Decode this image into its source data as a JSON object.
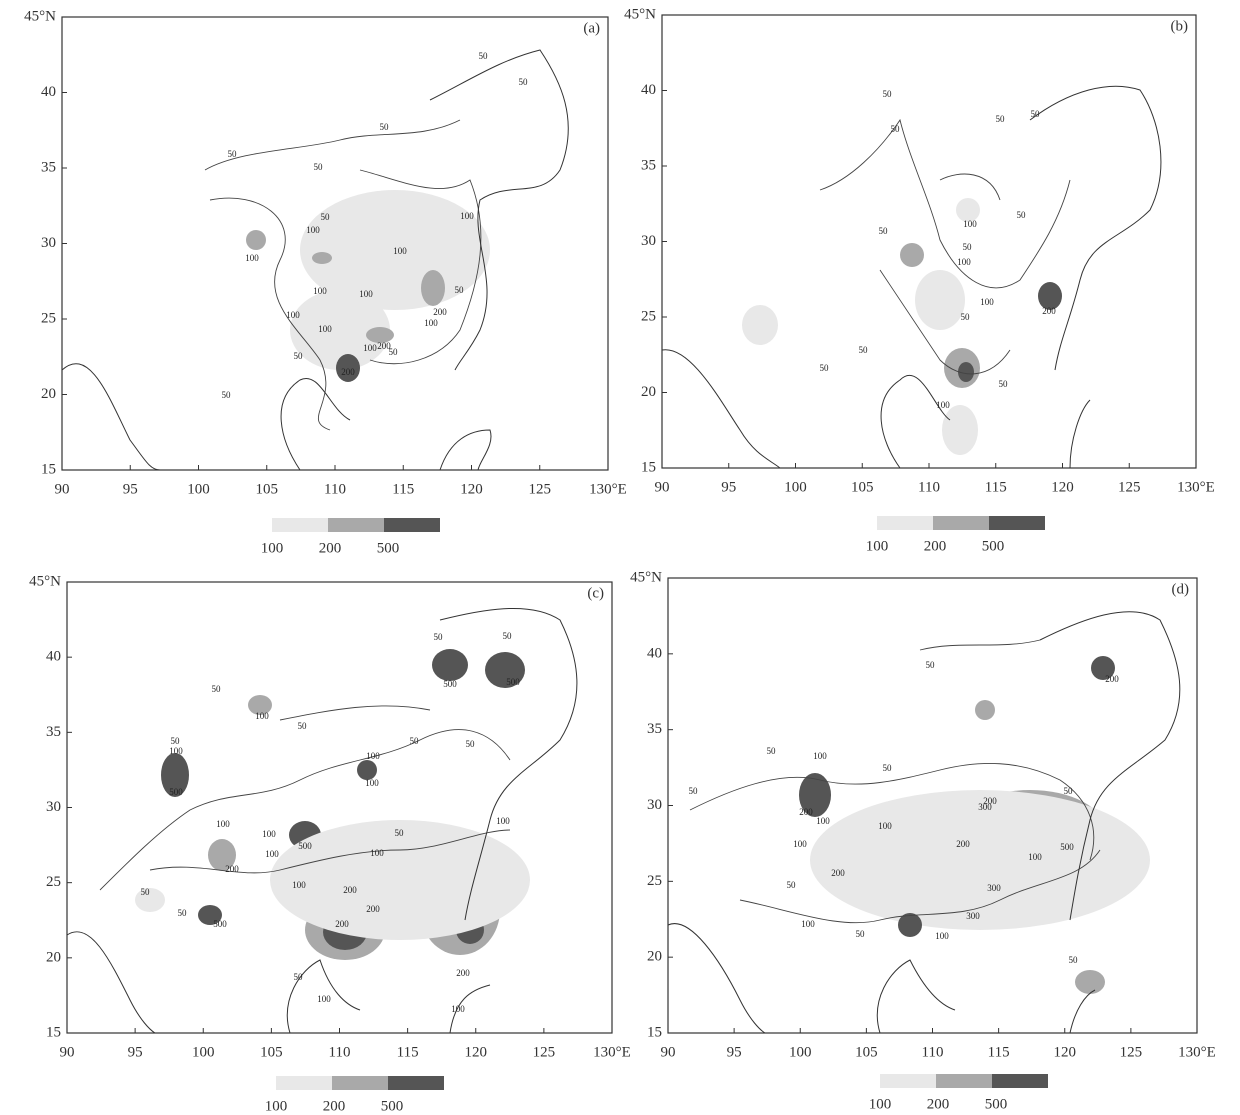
{
  "panels": [
    {
      "label": "(a)",
      "xlim": [
        90,
        130
      ],
      "ylim": [
        15,
        45
      ],
      "xticks": [
        90,
        95,
        100,
        105,
        110,
        115,
        120,
        125,
        {
          "value": 130,
          "label": "130°E"
        }
      ],
      "yticks": [
        15,
        20,
        25,
        30,
        35,
        40,
        {
          "value": 45,
          "label": "45°N"
        }
      ],
      "legend": {
        "levels": [
          100,
          200,
          500
        ],
        "colors": [
          "#e8e8e8",
          "#a9a9a9",
          "#555555"
        ]
      },
      "contour_labels": [
        "50",
        "50",
        "50",
        "50",
        "50",
        "50",
        "50",
        "50",
        "50",
        "50",
        "100",
        "100",
        "100",
        "100",
        "100",
        "100",
        "100",
        "100",
        "100",
        "100",
        "200",
        "200",
        "200"
      ]
    },
    {
      "label": "(b)",
      "xlim": [
        90,
        130
      ],
      "ylim": [
        15,
        45
      ],
      "xticks": [
        90,
        95,
        100,
        105,
        110,
        115,
        120,
        125,
        {
          "value": 130,
          "label": "130°E"
        }
      ],
      "yticks": [
        15,
        20,
        25,
        30,
        35,
        40,
        {
          "value": 45,
          "label": "45°N"
        }
      ],
      "legend": {
        "levels": [
          100,
          200,
          500
        ],
        "colors": [
          "#e8e8e8",
          "#a9a9a9",
          "#555555"
        ]
      },
      "contour_labels": [
        "50",
        "50",
        "50",
        "50",
        "50",
        "50",
        "50",
        "50",
        "50",
        "50",
        "50",
        "100",
        "100",
        "100",
        "100",
        "200"
      ]
    },
    {
      "label": "(c)",
      "xlim": [
        90,
        130
      ],
      "ylim": [
        15,
        45
      ],
      "xticks": [
        90,
        95,
        100,
        105,
        110,
        115,
        120,
        125,
        {
          "value": 130,
          "label": "130°E"
        }
      ],
      "yticks": [
        15,
        20,
        25,
        30,
        35,
        40,
        {
          "value": 45,
          "label": "45°N"
        }
      ],
      "legend": {
        "levels": [
          100,
          200,
          500
        ],
        "colors": [
          "#e8e8e8",
          "#a9a9a9",
          "#555555"
        ]
      },
      "contour_labels": [
        "50",
        "50",
        "50",
        "50",
        "50",
        "50",
        "50",
        "50",
        "50",
        "50",
        "50",
        "100",
        "100",
        "100",
        "100",
        "100",
        "100",
        "100",
        "100",
        "100",
        "100",
        "100",
        "100",
        "200",
        "200",
        "200",
        "200",
        "200",
        "500",
        "500",
        "500",
        "500",
        "500"
      ]
    },
    {
      "label": "(d)",
      "xlim": [
        90,
        130
      ],
      "ylim": [
        15,
        45
      ],
      "xticks": [
        90,
        95,
        100,
        105,
        110,
        115,
        120,
        125,
        {
          "value": 130,
          "label": "130°E"
        }
      ],
      "yticks": [
        15,
        20,
        25,
        30,
        35,
        40,
        {
          "value": 45,
          "label": "45°N"
        }
      ],
      "legend": {
        "levels": [
          100,
          200,
          500
        ],
        "colors": [
          "#e8e8e8",
          "#a9a9a9",
          "#555555"
        ]
      },
      "contour_labels": [
        "50",
        "50",
        "50",
        "50",
        "50",
        "50",
        "50",
        "50",
        "100",
        "100",
        "100",
        "100",
        "100",
        "100",
        "100",
        "200",
        "200",
        "200",
        "200",
        "200",
        "300",
        "300",
        "300",
        "500"
      ]
    }
  ]
}
